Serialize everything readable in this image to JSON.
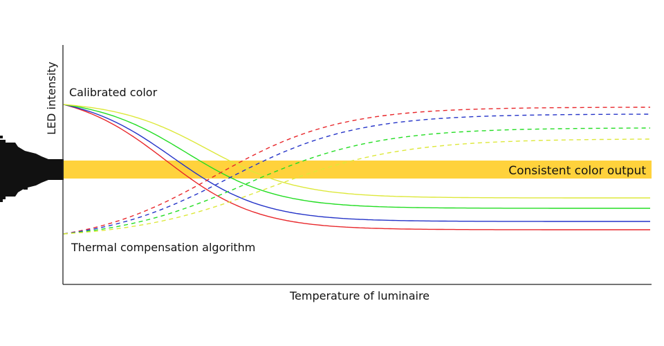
{
  "diagram": {
    "y_axis_label": "LED intensity",
    "x_axis_label": "Temperature of luminaire",
    "label_calibrated": "Calibrated color",
    "label_thermal": "Thermal compensation algorithm",
    "band_label": "Consistent color output"
  },
  "colors": {
    "band": "#ffd23c",
    "red": "#e8262a",
    "blue": "#2433c8",
    "green": "#22dd22",
    "yellow": "#dde83a",
    "axis": "#222222",
    "fixture": "#111111"
  },
  "curves": [
    {
      "id": "red",
      "kind": "uncompensated",
      "color": "red"
    },
    {
      "id": "blue",
      "kind": "uncompensated",
      "color": "blue"
    },
    {
      "id": "green",
      "kind": "uncompensated",
      "color": "green"
    },
    {
      "id": "yellow",
      "kind": "uncompensated",
      "color": "yellow"
    },
    {
      "id": "red",
      "kind": "compensation",
      "color": "red"
    },
    {
      "id": "blue",
      "kind": "compensation",
      "color": "blue"
    },
    {
      "id": "green",
      "kind": "compensation",
      "color": "green"
    },
    {
      "id": "yellow",
      "kind": "compensation",
      "color": "yellow"
    }
  ]
}
